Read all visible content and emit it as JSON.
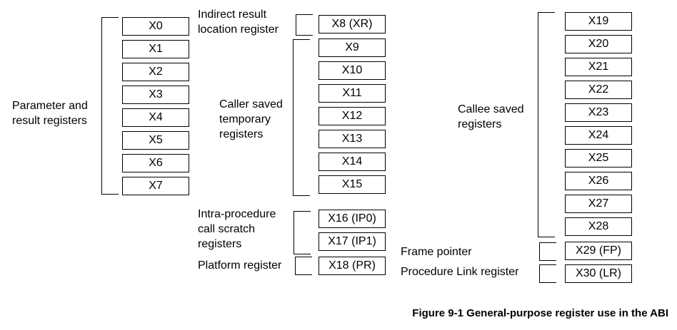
{
  "groups": {
    "parameter": {
      "label_line1": "Parameter and",
      "label_line2": "result registers",
      "registers": [
        "X0",
        "X1",
        "X2",
        "X3",
        "X4",
        "X5",
        "X6",
        "X7"
      ]
    },
    "indirect": {
      "label_line1": "Indirect result",
      "label_line2": "location register",
      "registers": [
        "X8 (XR)"
      ]
    },
    "caller_saved": {
      "label_line1": "Caller saved",
      "label_line2": "temporary",
      "label_line3": "registers",
      "registers": [
        "X9",
        "X10",
        "X11",
        "X12",
        "X13",
        "X14",
        "X15"
      ]
    },
    "intra_procedure": {
      "label_line1": "Intra-procedure",
      "label_line2": "call scratch",
      "label_line3": "registers",
      "registers": [
        "X16 (IP0)",
        "X17 (IP1)"
      ]
    },
    "platform": {
      "label": "Platform register",
      "registers": [
        "X18 (PR)"
      ]
    },
    "callee_saved": {
      "label_line1": "Callee saved",
      "label_line2": "registers",
      "registers": [
        "X19",
        "X20",
        "X21",
        "X22",
        "X23",
        "X24",
        "X25",
        "X26",
        "X27",
        "X28"
      ]
    },
    "frame_pointer": {
      "label": "Frame pointer",
      "registers": [
        "X29 (FP)"
      ]
    },
    "link_register": {
      "label": "Procedure Link register",
      "registers": [
        "X30 (LR)"
      ]
    }
  },
  "caption": "Figure 9-1 General-purpose register use in the ABI"
}
